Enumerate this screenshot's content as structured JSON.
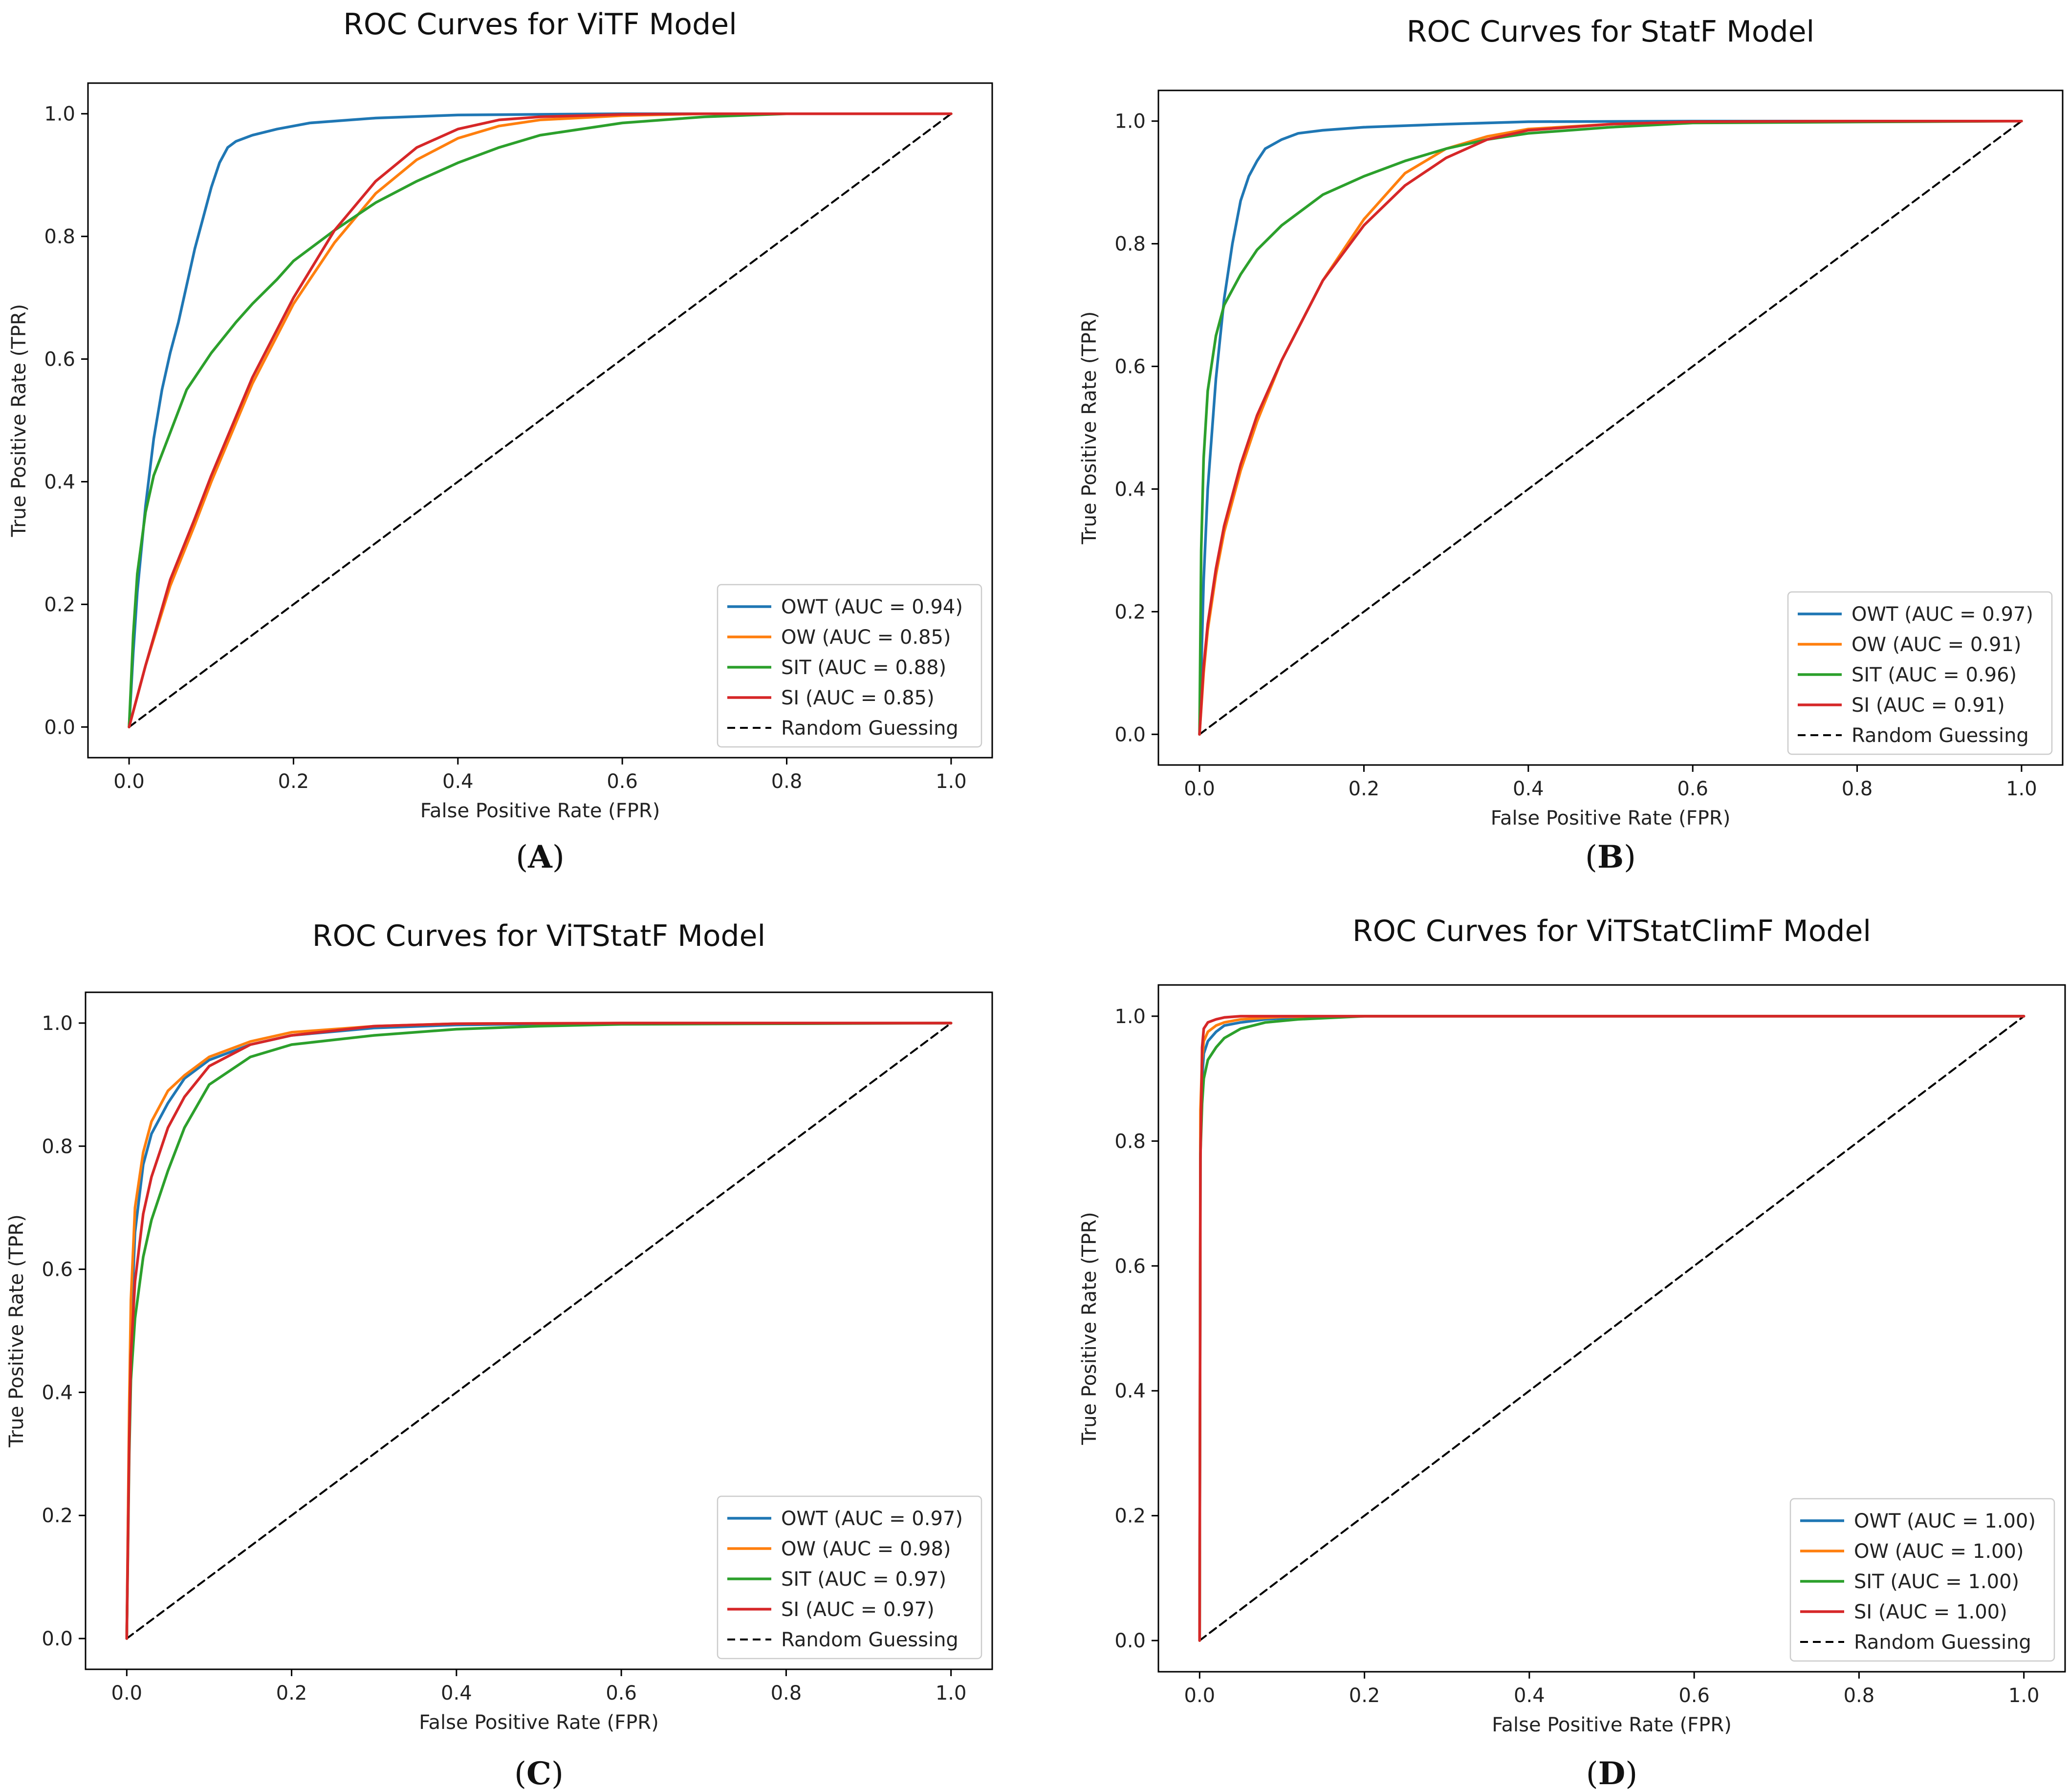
{
  "figure": {
    "panels": [
      {
        "caption_letter": "A"
      },
      {
        "caption_letter": "B"
      },
      {
        "caption_letter": "C"
      },
      {
        "caption_letter": "D"
      }
    ]
  },
  "colors": {
    "OWT": "#1f77b4",
    "OW": "#ff7f0e",
    "SIT": "#2ca02c",
    "SI": "#d62728",
    "Random Guessing": "#000000"
  },
  "chart_data": [
    {
      "type": "line",
      "title": "ROC Curves for ViTF Model",
      "xlabel": "False Positive Rate (FPR)",
      "ylabel": "True Positive Rate (TPR)",
      "xlim": [
        -0.05,
        1.05
      ],
      "ylim": [
        -0.05,
        1.05
      ],
      "xticks": [
        0.0,
        0.2,
        0.4,
        0.6,
        0.8,
        1.0
      ],
      "yticks": [
        0.0,
        0.2,
        0.4,
        0.6,
        0.8,
        1.0
      ],
      "xtick_labels": [
        "0.0",
        "0.2",
        "0.4",
        "0.6",
        "0.8",
        "1.0"
      ],
      "ytick_labels": [
        "0.0",
        "0.2",
        "0.4",
        "0.6",
        "0.8",
        "1.0"
      ],
      "grid": false,
      "legend": "lower-right",
      "series": [
        {
          "name": "OWT",
          "label": "OWT (AUC = 0.94)",
          "style": "solid",
          "x": [
            0,
            0.005,
            0.01,
            0.02,
            0.03,
            0.04,
            0.05,
            0.06,
            0.07,
            0.08,
            0.09,
            0.1,
            0.11,
            0.12,
            0.13,
            0.15,
            0.18,
            0.22,
            0.3,
            0.4,
            0.6,
            1.0
          ],
          "y": [
            0,
            0.12,
            0.22,
            0.36,
            0.47,
            0.55,
            0.61,
            0.66,
            0.72,
            0.78,
            0.83,
            0.88,
            0.92,
            0.945,
            0.955,
            0.965,
            0.975,
            0.985,
            0.993,
            0.998,
            1.0,
            1.0
          ]
        },
        {
          "name": "OW",
          "label": "OW (AUC = 0.85)",
          "style": "solid",
          "x": [
            0,
            0.02,
            0.05,
            0.08,
            0.1,
            0.15,
            0.2,
            0.25,
            0.3,
            0.35,
            0.4,
            0.45,
            0.5,
            0.6,
            0.7,
            0.8,
            1.0
          ],
          "y": [
            0,
            0.1,
            0.23,
            0.33,
            0.4,
            0.56,
            0.69,
            0.79,
            0.87,
            0.925,
            0.96,
            0.98,
            0.99,
            0.997,
            1.0,
            1.0,
            1.0
          ]
        },
        {
          "name": "SIT",
          "label": "SIT (AUC = 0.88)",
          "style": "solid",
          "x": [
            0,
            0.005,
            0.01,
            0.02,
            0.03,
            0.05,
            0.07,
            0.1,
            0.13,
            0.15,
            0.18,
            0.2,
            0.25,
            0.3,
            0.35,
            0.4,
            0.45,
            0.5,
            0.6,
            0.7,
            0.8,
            1.0
          ],
          "y": [
            0,
            0.15,
            0.25,
            0.35,
            0.41,
            0.48,
            0.55,
            0.61,
            0.66,
            0.69,
            0.73,
            0.76,
            0.81,
            0.855,
            0.89,
            0.92,
            0.945,
            0.965,
            0.985,
            0.995,
            1.0,
            1.0
          ]
        },
        {
          "name": "SI",
          "label": "SI (AUC = 0.85)",
          "style": "solid",
          "x": [
            0,
            0.02,
            0.05,
            0.08,
            0.1,
            0.15,
            0.2,
            0.25,
            0.3,
            0.35,
            0.4,
            0.45,
            0.5,
            0.6,
            0.7,
            0.8,
            1.0
          ],
          "y": [
            0,
            0.1,
            0.24,
            0.34,
            0.41,
            0.57,
            0.7,
            0.81,
            0.89,
            0.945,
            0.975,
            0.99,
            0.995,
            0.999,
            1.0,
            1.0,
            1.0
          ]
        },
        {
          "name": "Random Guessing",
          "label": "Random Guessing",
          "style": "dashed",
          "x": [
            0,
            1
          ],
          "y": [
            0,
            1
          ]
        }
      ]
    },
    {
      "type": "line",
      "title": "ROC Curves for StatF Model",
      "xlabel": "False Positive Rate (FPR)",
      "ylabel": "True Positive Rate (TPR)",
      "xlim": [
        -0.05,
        1.05
      ],
      "ylim": [
        -0.05,
        1.05
      ],
      "xticks": [
        0.0,
        0.2,
        0.4,
        0.6,
        0.8,
        1.0
      ],
      "yticks": [
        0.0,
        0.2,
        0.4,
        0.6,
        0.8,
        1.0
      ],
      "xtick_labels": [
        "0.0",
        "0.2",
        "0.4",
        "0.6",
        "0.8",
        "1.0"
      ],
      "ytick_labels": [
        "0.0",
        "0.2",
        "0.4",
        "0.6",
        "0.8",
        "1.0"
      ],
      "grid": false,
      "legend": "lower-right",
      "series": [
        {
          "name": "OWT",
          "label": "OWT (AUC = 0.97)",
          "style": "solid",
          "x": [
            0,
            0.005,
            0.01,
            0.02,
            0.03,
            0.04,
            0.05,
            0.06,
            0.07,
            0.08,
            0.1,
            0.12,
            0.15,
            0.2,
            0.3,
            0.4,
            0.6,
            1.0
          ],
          "y": [
            0,
            0.25,
            0.4,
            0.58,
            0.71,
            0.8,
            0.87,
            0.91,
            0.935,
            0.955,
            0.97,
            0.98,
            0.985,
            0.99,
            0.995,
            0.999,
            1.0,
            1.0
          ]
        },
        {
          "name": "OW",
          "label": "OW (AUC = 0.91)",
          "style": "solid",
          "x": [
            0,
            0.005,
            0.01,
            0.02,
            0.03,
            0.05,
            0.07,
            0.1,
            0.15,
            0.2,
            0.25,
            0.3,
            0.35,
            0.4,
            0.5,
            0.6,
            0.8,
            1.0
          ],
          "y": [
            0,
            0.1,
            0.17,
            0.26,
            0.33,
            0.43,
            0.51,
            0.61,
            0.74,
            0.84,
            0.915,
            0.955,
            0.975,
            0.987,
            0.995,
            0.999,
            1.0,
            1.0
          ]
        },
        {
          "name": "SIT",
          "label": "SIT (AUC = 0.96)",
          "style": "solid",
          "x": [
            0,
            0.002,
            0.005,
            0.01,
            0.02,
            0.03,
            0.05,
            0.07,
            0.1,
            0.15,
            0.2,
            0.25,
            0.3,
            0.35,
            0.4,
            0.5,
            0.6,
            1.0
          ],
          "y": [
            0,
            0.3,
            0.45,
            0.56,
            0.65,
            0.7,
            0.75,
            0.79,
            0.83,
            0.88,
            0.91,
            0.935,
            0.955,
            0.97,
            0.98,
            0.99,
            0.997,
            1.0
          ]
        },
        {
          "name": "SI",
          "label": "SI (AUC = 0.91)",
          "style": "solid",
          "x": [
            0,
            0.005,
            0.01,
            0.02,
            0.03,
            0.05,
            0.07,
            0.1,
            0.15,
            0.2,
            0.25,
            0.3,
            0.35,
            0.4,
            0.5,
            0.6,
            0.8,
            1.0
          ],
          "y": [
            0,
            0.11,
            0.18,
            0.27,
            0.34,
            0.44,
            0.52,
            0.61,
            0.74,
            0.83,
            0.895,
            0.94,
            0.97,
            0.985,
            0.995,
            0.999,
            1.0,
            1.0
          ]
        },
        {
          "name": "Random Guessing",
          "label": "Random Guessing",
          "style": "dashed",
          "x": [
            0,
            1
          ],
          "y": [
            0,
            1
          ]
        }
      ]
    },
    {
      "type": "line",
      "title": "ROC Curves for ViTStatF Model",
      "xlabel": "False Positive Rate (FPR)",
      "ylabel": "True Positive Rate (TPR)",
      "xlim": [
        -0.05,
        1.05
      ],
      "ylim": [
        -0.05,
        1.05
      ],
      "xticks": [
        0.0,
        0.2,
        0.4,
        0.6,
        0.8,
        1.0
      ],
      "yticks": [
        0.0,
        0.2,
        0.4,
        0.6,
        0.8,
        1.0
      ],
      "xtick_labels": [
        "0.0",
        "0.2",
        "0.4",
        "0.6",
        "0.8",
        "1.0"
      ],
      "ytick_labels": [
        "0.0",
        "0.2",
        "0.4",
        "0.6",
        "0.8",
        "1.0"
      ],
      "grid": false,
      "legend": "lower-right",
      "series": [
        {
          "name": "OWT",
          "label": "OWT (AUC = 0.97)",
          "style": "solid",
          "x": [
            0,
            0.003,
            0.005,
            0.01,
            0.02,
            0.03,
            0.05,
            0.07,
            0.1,
            0.15,
            0.2,
            0.3,
            0.4,
            0.6,
            1.0
          ],
          "y": [
            0,
            0.35,
            0.5,
            0.66,
            0.77,
            0.82,
            0.87,
            0.91,
            0.94,
            0.965,
            0.98,
            0.992,
            0.997,
            1.0,
            1.0
          ]
        },
        {
          "name": "OW",
          "label": "OW (AUC = 0.98)",
          "style": "solid",
          "x": [
            0,
            0.003,
            0.005,
            0.01,
            0.02,
            0.03,
            0.05,
            0.07,
            0.1,
            0.15,
            0.2,
            0.3,
            0.4,
            0.6,
            1.0
          ],
          "y": [
            0,
            0.38,
            0.55,
            0.7,
            0.79,
            0.84,
            0.89,
            0.915,
            0.945,
            0.97,
            0.985,
            0.995,
            0.999,
            1.0,
            1.0
          ]
        },
        {
          "name": "SIT",
          "label": "SIT (AUC = 0.97)",
          "style": "solid",
          "x": [
            0,
            0.003,
            0.005,
            0.01,
            0.02,
            0.03,
            0.05,
            0.07,
            0.1,
            0.15,
            0.2,
            0.3,
            0.4,
            0.5,
            0.6,
            1.0
          ],
          "y": [
            0,
            0.3,
            0.42,
            0.52,
            0.62,
            0.68,
            0.76,
            0.83,
            0.9,
            0.945,
            0.965,
            0.98,
            0.99,
            0.995,
            0.998,
            1.0
          ]
        },
        {
          "name": "SI",
          "label": "SI (AUC = 0.97)",
          "style": "solid",
          "x": [
            0,
            0.003,
            0.005,
            0.01,
            0.02,
            0.03,
            0.05,
            0.07,
            0.1,
            0.15,
            0.2,
            0.3,
            0.4,
            0.6,
            1.0
          ],
          "y": [
            0,
            0.32,
            0.46,
            0.58,
            0.69,
            0.75,
            0.83,
            0.88,
            0.93,
            0.965,
            0.98,
            0.995,
            0.999,
            1.0,
            1.0
          ]
        },
        {
          "name": "Random Guessing",
          "label": "Random Guessing",
          "style": "dashed",
          "x": [
            0,
            1
          ],
          "y": [
            0,
            1
          ]
        }
      ]
    },
    {
      "type": "line",
      "title": "ROC Curves for ViTStatClimF Model",
      "xlabel": "False Positive Rate (FPR)",
      "ylabel": "True Positive Rate (TPR)",
      "xlim": [
        -0.05,
        1.05
      ],
      "ylim": [
        -0.05,
        1.05
      ],
      "xticks": [
        0.0,
        0.2,
        0.4,
        0.6,
        0.8,
        1.0
      ],
      "yticks": [
        0.0,
        0.2,
        0.4,
        0.6,
        0.8,
        1.0
      ],
      "xtick_labels": [
        "0.0",
        "0.2",
        "0.4",
        "0.6",
        "0.8",
        "1.0"
      ],
      "ytick_labels": [
        "0.0",
        "0.2",
        "0.4",
        "0.6",
        "0.8",
        "1.0"
      ],
      "grid": false,
      "legend": "lower-right",
      "series": [
        {
          "name": "OWT",
          "label": "OWT (AUC = 1.00)",
          "style": "solid",
          "x": [
            0,
            0.001,
            0.003,
            0.005,
            0.01,
            0.02,
            0.03,
            0.05,
            0.08,
            0.12,
            0.2,
            1.0
          ],
          "y": [
            0,
            0.8,
            0.9,
            0.94,
            0.96,
            0.975,
            0.985,
            0.99,
            0.995,
            0.998,
            1.0,
            1.0
          ]
        },
        {
          "name": "OW",
          "label": "OW (AUC = 1.00)",
          "style": "solid",
          "x": [
            0,
            0.001,
            0.003,
            0.005,
            0.01,
            0.02,
            0.03,
            0.05,
            0.1,
            0.2,
            1.0
          ],
          "y": [
            0,
            0.85,
            0.93,
            0.96,
            0.975,
            0.985,
            0.99,
            0.995,
            0.999,
            1.0,
            1.0
          ]
        },
        {
          "name": "SIT",
          "label": "SIT (AUC = 1.00)",
          "style": "solid",
          "x": [
            0,
            0.001,
            0.003,
            0.005,
            0.01,
            0.02,
            0.03,
            0.05,
            0.08,
            0.12,
            0.2,
            1.0
          ],
          "y": [
            0,
            0.78,
            0.86,
            0.9,
            0.93,
            0.95,
            0.965,
            0.98,
            0.99,
            0.995,
            1.0,
            1.0
          ]
        },
        {
          "name": "SI",
          "label": "SI (AUC = 1.00)",
          "style": "solid",
          "x": [
            0,
            0.001,
            0.003,
            0.005,
            0.01,
            0.02,
            0.03,
            0.05,
            0.1,
            1.0
          ],
          "y": [
            0,
            0.77,
            0.95,
            0.98,
            0.99,
            0.995,
            0.998,
            1.0,
            1.0,
            1.0
          ]
        },
        {
          "name": "Random Guessing",
          "label": "Random Guessing",
          "style": "dashed",
          "x": [
            0,
            1
          ],
          "y": [
            0,
            1
          ]
        }
      ]
    }
  ]
}
